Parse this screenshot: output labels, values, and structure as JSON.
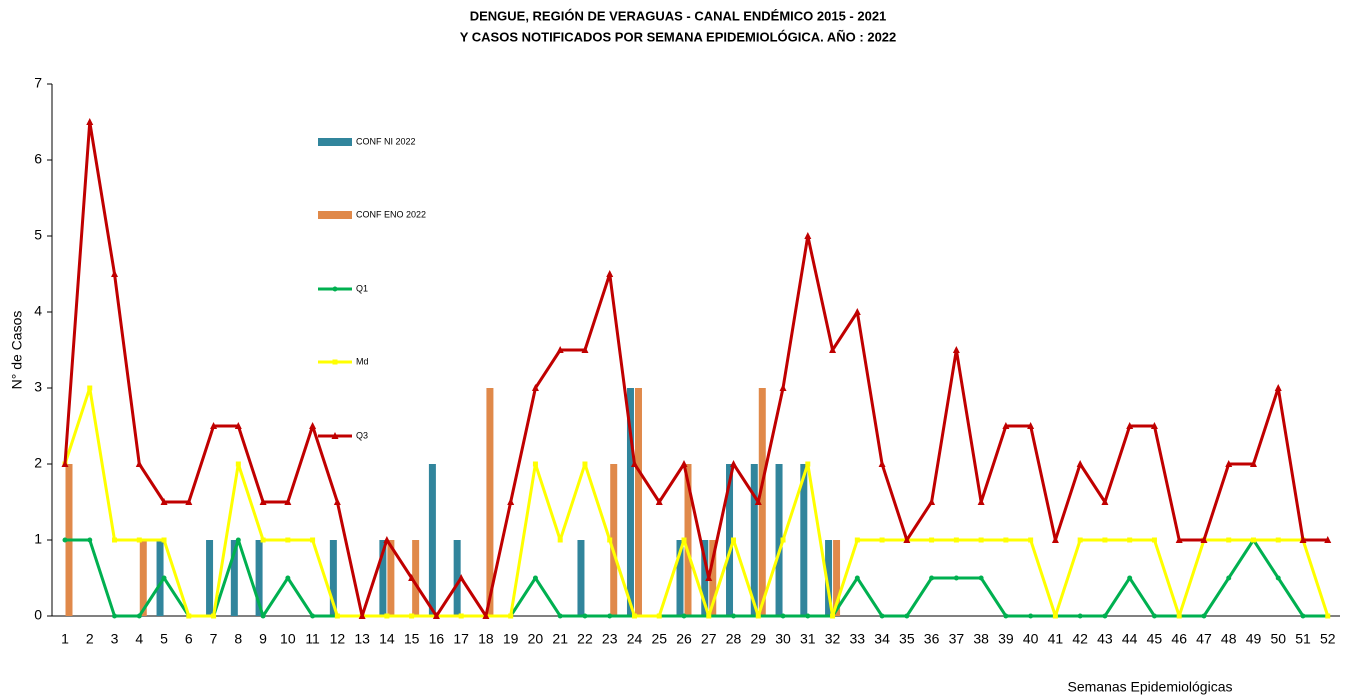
{
  "chart_data": {
    "type": "combo",
    "title": "DENGUE, REGIÓN DE VERAGUAS - CANAL ENDÉMICO 2015 - 2021",
    "subtitle": "Y CASOS NOTIFICADOS POR SEMANA EPIDEMIOLÓGICA. AÑO : 2022",
    "y_label": "N° de Casos",
    "x_label": "Semanas Epidemiológicas",
    "categories": [
      "1",
      "2",
      "3",
      "4",
      "5",
      "6",
      "7",
      "8",
      "9",
      "10",
      "11",
      "12",
      "13",
      "14",
      "15",
      "16",
      "17",
      "18",
      "19",
      "20",
      "21",
      "22",
      "23",
      "24",
      "25",
      "26",
      "27",
      "28",
      "29",
      "30",
      "31",
      "32",
      "33",
      "34",
      "35",
      "36",
      "37",
      "38",
      "39",
      "40",
      "41",
      "42",
      "43",
      "44",
      "45",
      "46",
      "47",
      "48",
      "49",
      "50",
      "51",
      "52"
    ],
    "ylim": [
      0,
      7
    ],
    "yticks": [
      0,
      1,
      2,
      3,
      4,
      5,
      6,
      7
    ],
    "series": [
      {
        "name": "CONF NI 2022",
        "type": "bar",
        "color": "#31859c",
        "values": [
          0,
          0,
          0,
          0,
          1,
          0,
          1,
          1,
          1,
          0,
          0,
          1,
          0,
          1,
          0,
          2,
          1,
          0,
          0,
          0,
          0,
          1,
          0,
          3,
          0,
          1,
          1,
          2,
          2,
          2,
          2,
          1,
          0,
          0,
          0,
          0,
          0,
          0,
          0,
          0,
          0,
          0,
          0,
          0,
          0,
          0,
          0,
          0,
          0,
          0,
          0,
          0
        ]
      },
      {
        "name": "CONF ENO 2022",
        "type": "bar",
        "color": "#e0894a",
        "values": [
          2,
          0,
          0,
          1,
          0,
          0,
          0,
          0,
          0,
          0,
          0,
          0,
          0,
          1,
          1,
          0,
          0,
          3,
          0,
          0,
          0,
          0,
          2,
          3,
          0,
          2,
          1,
          0,
          3,
          0,
          0,
          1,
          0,
          0,
          0,
          0,
          0,
          0,
          0,
          0,
          0,
          0,
          0,
          0,
          0,
          0,
          0,
          0,
          0,
          0,
          0,
          0
        ]
      },
      {
        "name": "Q1",
        "type": "line",
        "marker": "circle",
        "color": "#00b050",
        "values": [
          1,
          1,
          0,
          0,
          0.5,
          0,
          0,
          1,
          0,
          0.5,
          0,
          0,
          0,
          0,
          0,
          0,
          0,
          0,
          0,
          0.5,
          0,
          0,
          0,
          0,
          0,
          0,
          0,
          0,
          0,
          0,
          0,
          0,
          0.5,
          0,
          0,
          0.5,
          0.5,
          0.5,
          0,
          0,
          0,
          0,
          0,
          0.5,
          0,
          0,
          0,
          0.5,
          1,
          0.5,
          0,
          0
        ]
      },
      {
        "name": "Md",
        "type": "line",
        "marker": "square",
        "color": "#ffff00",
        "values": [
          2,
          3,
          1,
          1,
          1,
          0,
          0,
          2,
          1,
          1,
          1,
          0,
          0,
          0,
          0,
          0,
          0,
          0,
          0,
          2,
          1,
          2,
          1,
          0,
          0,
          1,
          0,
          1,
          0,
          1,
          2,
          0,
          1,
          1,
          1,
          1,
          1,
          1,
          1,
          1,
          0,
          1,
          1,
          1,
          1,
          0,
          1,
          1,
          1,
          1,
          1,
          0
        ]
      },
      {
        "name": "Q3",
        "type": "line",
        "marker": "triangle",
        "color": "#c00000",
        "values": [
          2,
          6.5,
          4.5,
          2,
          1.5,
          1.5,
          2.5,
          2.5,
          1.5,
          1.5,
          2.5,
          1.5,
          0,
          1,
          0.5,
          0,
          0.5,
          0,
          1.5,
          3,
          3.5,
          3.5,
          4.5,
          2,
          1.5,
          2,
          0.5,
          2,
          1.5,
          3,
          5,
          3.5,
          4,
          2,
          1,
          1.5,
          3.5,
          1.5,
          2.5,
          2.5,
          1,
          2,
          1.5,
          2.5,
          2.5,
          1,
          1,
          2,
          2,
          3,
          1,
          1
        ]
      }
    ]
  }
}
